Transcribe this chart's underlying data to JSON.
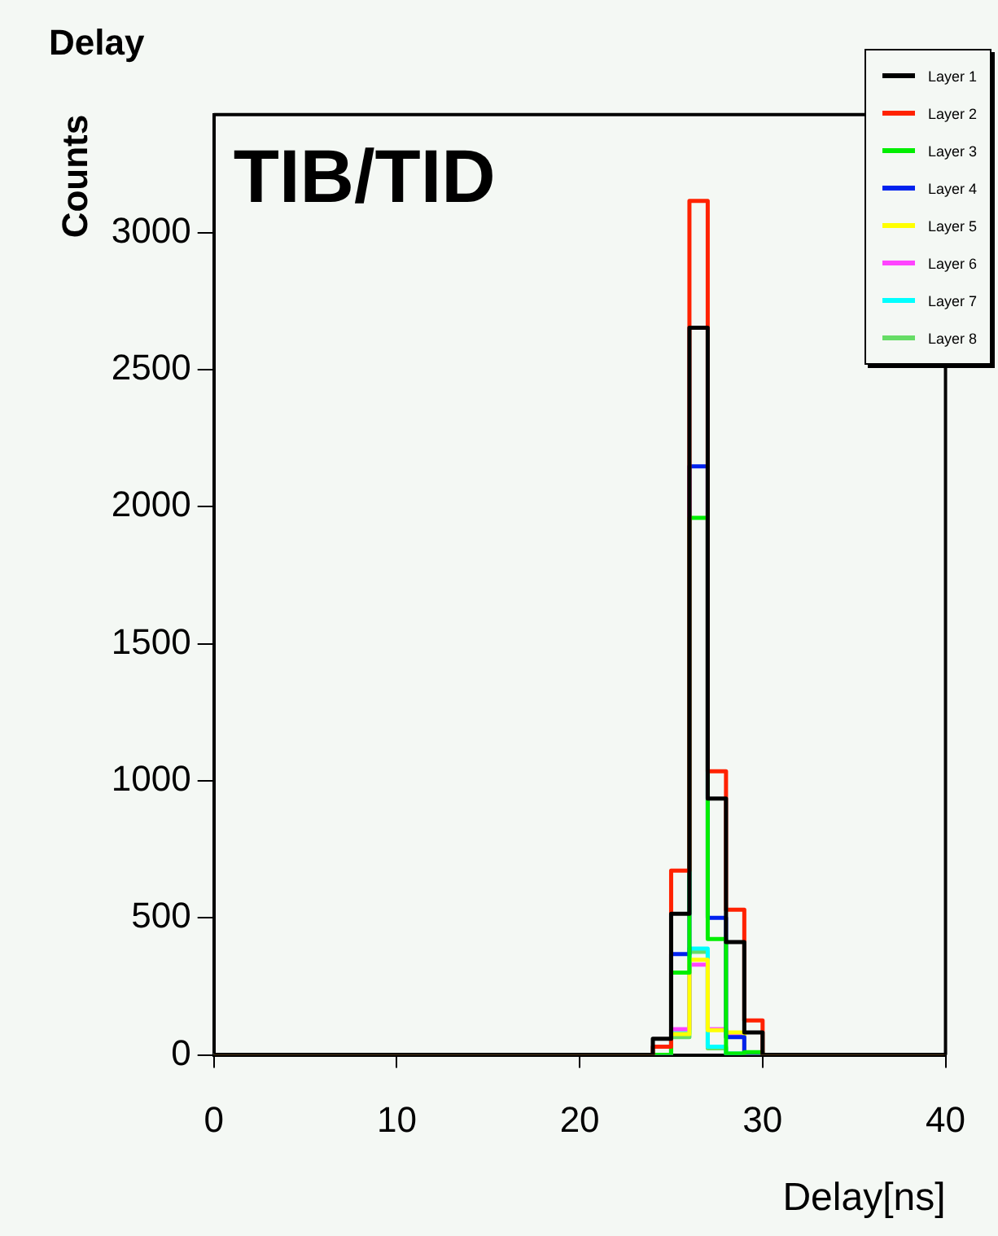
{
  "chart_data": {
    "type": "histogram",
    "title": "Delay",
    "xlabel": "Delay[ns]",
    "ylabel": "Counts",
    "annotations": [
      "TIB/TID"
    ],
    "bins": [
      0,
      24,
      25,
      26,
      27,
      28,
      29,
      30,
      40
    ],
    "series": [
      {
        "name": "Layer 1",
        "color": "#000000",
        "values": [
          0,
          59,
          515,
          2653,
          935,
          412,
          82,
          0
        ]
      },
      {
        "name": "Layer 2",
        "color": "#ff2200",
        "values": [
          0,
          30,
          672,
          3115,
          1035,
          530,
          126,
          0
        ]
      },
      {
        "name": "Layer 3",
        "color": "#00ee00",
        "values": [
          0,
          0,
          300,
          1959,
          423,
          5,
          10,
          0
        ]
      },
      {
        "name": "Layer 4",
        "color": "#0022ee",
        "values": [
          0,
          0,
          368,
          2147,
          500,
          65,
          0,
          0
        ]
      },
      {
        "name": "Layer 5",
        "color": "#ffff00",
        "values": [
          0,
          0,
          76,
          347,
          90,
          82,
          0,
          0
        ]
      },
      {
        "name": "Layer 6",
        "color": "#ff44ff",
        "values": [
          0,
          0,
          94,
          329,
          94,
          76,
          0,
          0
        ]
      },
      {
        "name": "Layer 7",
        "color": "#00ffff",
        "values": [
          0,
          0,
          80,
          388,
          30,
          5,
          0,
          0
        ]
      },
      {
        "name": "Layer 8",
        "color": "#66dd66",
        "values": [
          0,
          0,
          65,
          376,
          24,
          5,
          0,
          0
        ]
      }
    ],
    "xlim": [
      0,
      40
    ],
    "xticks": [
      0,
      10,
      20,
      30,
      40
    ],
    "ylim": [
      0,
      3430
    ],
    "yticks": [
      0,
      500,
      1000,
      1500,
      2000,
      2500,
      3000
    ],
    "grid": false,
    "legend": "top right"
  }
}
